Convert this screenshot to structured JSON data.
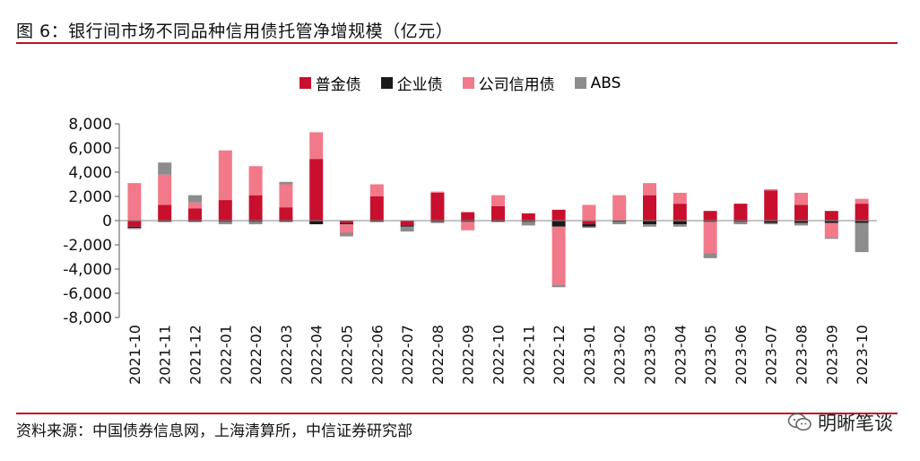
{
  "header": {
    "title": "图 6：银行间市场不同品种信用债托管净增规模（亿元）"
  },
  "footer": {
    "source": "资料来源：中国债券信息网，上海清算所，中信证券研究部",
    "watermark": "明晰笔谈"
  },
  "colors": {
    "rule": "#c1121f",
    "普金债": "#c8102e",
    "企业债": "#1a1a1a",
    "公司信用债": "#f2798a",
    "ABS": "#8c8c8c"
  },
  "chart_data": {
    "type": "bar",
    "stacked": true,
    "title": "",
    "xlabel": "",
    "ylabel": "",
    "ylim": [
      -8000,
      8000
    ],
    "yticks": [
      8000,
      6000,
      4000,
      2000,
      0,
      -2000,
      -4000,
      -6000,
      -8000
    ],
    "ytick_labels": [
      "8,000",
      "6,000",
      "4,000",
      "2,000",
      "0",
      "-2,000",
      "-4,000",
      "-6,000",
      "-8,000"
    ],
    "legend_position": "top-center",
    "categories": [
      "2021-10",
      "2021-11",
      "2021-12",
      "2022-01",
      "2022-02",
      "2022-03",
      "2022-04",
      "2022-05",
      "2022-06",
      "2022-07",
      "2022-08",
      "2022-09",
      "2022-10",
      "2022-11",
      "2022-12",
      "2023-01",
      "2023-02",
      "2023-03",
      "2023-04",
      "2023-05",
      "2023-06",
      "2023-07",
      "2023-08",
      "2023-09",
      "2023-10"
    ],
    "series": [
      {
        "name": "普金债",
        "values": [
          -500,
          1300,
          1000,
          1700,
          2100,
          1100,
          5100,
          -200,
          2000,
          -400,
          2300,
          700,
          1200,
          600,
          900,
          -300,
          0,
          2100,
          1400,
          800,
          1400,
          2500,
          1300,
          800,
          1400
        ]
      },
      {
        "name": "企业债",
        "values": [
          -100,
          -100,
          -100,
          -100,
          -100,
          -100,
          -300,
          -100,
          -100,
          -100,
          -100,
          -100,
          -100,
          -100,
          -500,
          -200,
          -100,
          -300,
          -300,
          -100,
          -100,
          -200,
          -200,
          -200,
          -200
        ]
      },
      {
        "name": "公司信用债",
        "values": [
          3100,
          2500,
          500,
          4100,
          2400,
          1900,
          2200,
          -700,
          1000,
          0,
          100,
          -700,
          900,
          0,
          -4800,
          1300,
          2100,
          1000,
          900,
          -2600,
          0,
          100,
          1000,
          -1200,
          400
        ]
      },
      {
        "name": "ABS",
        "values": [
          -100,
          1000,
          600,
          -200,
          -200,
          200,
          0,
          -300,
          0,
          -400,
          -100,
          0,
          0,
          -300,
          -200,
          -100,
          -200,
          -200,
          -200,
          -400,
          -200,
          -100,
          -200,
          -100,
          -2400
        ]
      }
    ]
  }
}
